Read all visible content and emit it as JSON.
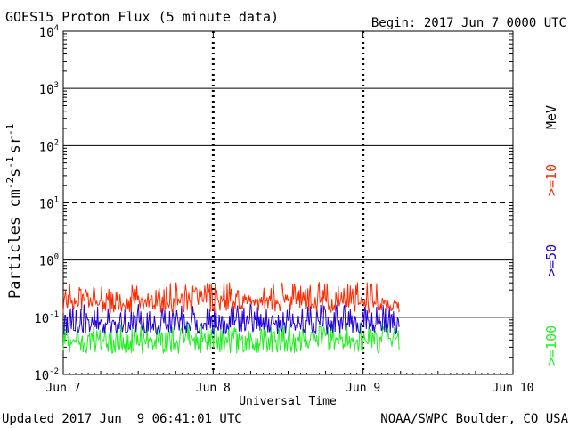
{
  "chart_data": {
    "type": "line",
    "title": "GOES15 Proton Flux (5 minute data)",
    "begin": "Begin: 2017 Jun 7 0000 UTC",
    "xlabel": "Universal Time",
    "ylabel_main": "Particles cm",
    "ylabel_sups": [
      "-2",
      "-1",
      "-1"
    ],
    "ylabel_parts": [
      "s",
      "sr"
    ],
    "x_ticks": [
      {
        "label": "Jun 7",
        "day": 0
      },
      {
        "label": "Jun 8",
        "day": 1
      },
      {
        "label": "Jun 9",
        "day": 2
      },
      {
        "label": "Jun 10",
        "day": 3
      }
    ],
    "xlim": [
      0,
      3
    ],
    "y_scale": "log",
    "ylim": [
      0.01,
      10000
    ],
    "y_ticks": [
      {
        "base": "10",
        "exp": "-2",
        "value": 0.01
      },
      {
        "base": "10",
        "exp": "-1",
        "value": 0.1
      },
      {
        "base": "10",
        "exp": "0",
        "value": 1
      },
      {
        "base": "10",
        "exp": "1",
        "value": 10
      },
      {
        "base": "10",
        "exp": "2",
        "value": 100
      },
      {
        "base": "10",
        "exp": "3",
        "value": 1000
      },
      {
        "base": "10",
        "exp": "4",
        "value": 10000
      }
    ],
    "grid": "horizontal lines at each decade (10^1 dashed), dashed vertical lines at day boundaries",
    "unit_label": "MeV",
    "series": [
      {
        "name": ">=10",
        "color": "#ff2a00",
        "x_start": 0,
        "x_end": 2.24,
        "typical": 0.19,
        "min": 0.12,
        "max": 0.42
      },
      {
        "name": ">=50",
        "color": "#2200dd",
        "x_start": 0,
        "x_end": 2.24,
        "typical": 0.078,
        "min": 0.05,
        "max": 0.17
      },
      {
        "name": ">=100",
        "color": "#22ee22",
        "x_start": 0,
        "x_end": 2.24,
        "typical": 0.04,
        "min": 0.023,
        "max": 0.08
      }
    ]
  },
  "footer": {
    "updated": "Updated 2017 Jun  9 06:41:01 UTC",
    "source": "NOAA/SWPC Boulder, CO USA"
  }
}
